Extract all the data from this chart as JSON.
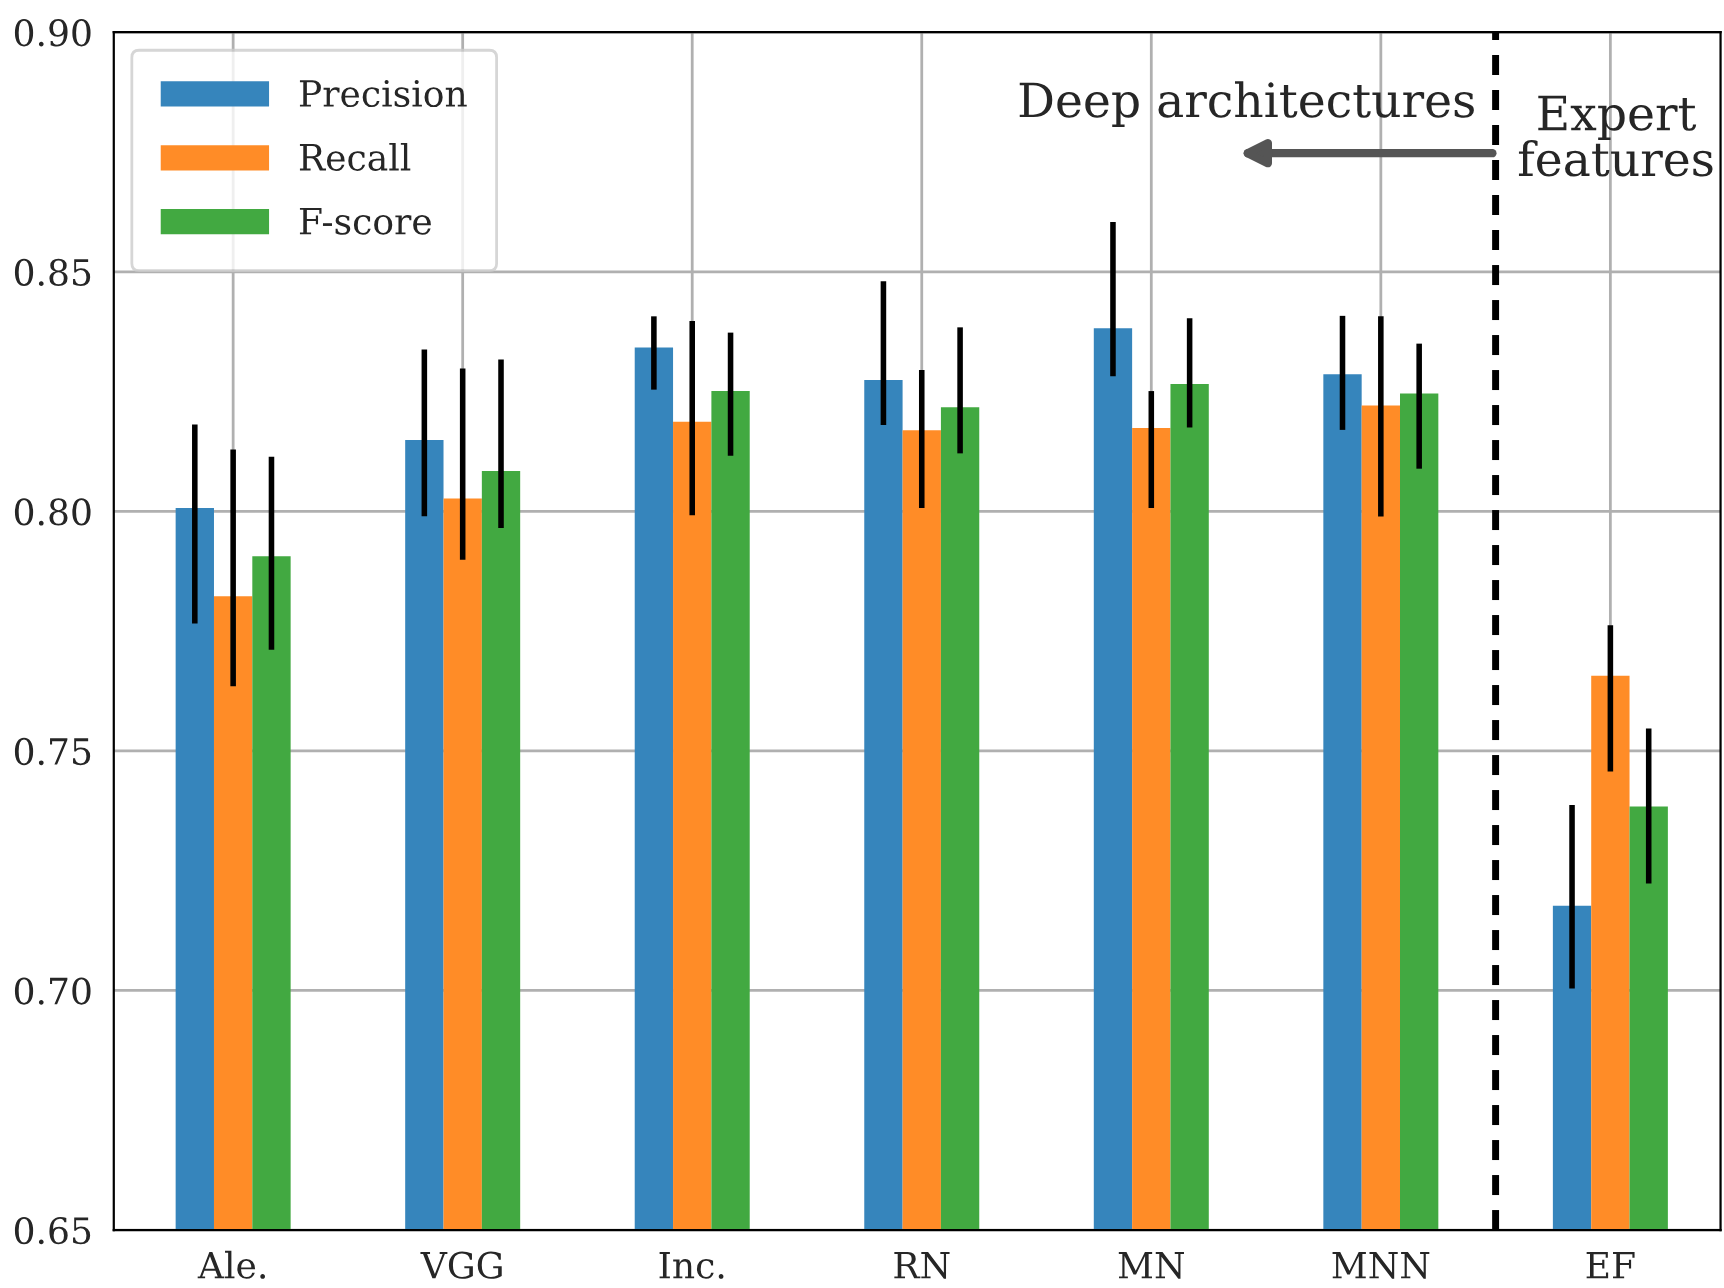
{
  "chart_data": {
    "type": "bar",
    "categories": [
      "Ale.",
      "VGG",
      "Inc.",
      "RN",
      "MN",
      "MNN",
      "EF"
    ],
    "series": [
      {
        "name": "Precision",
        "color": "#3685bc",
        "values": [
          0.8007,
          0.8149,
          0.8342,
          0.8274,
          0.8382,
          0.8286,
          0.7177
        ],
        "errors": [
          [
            0.7766,
            0.8181
          ],
          [
            0.799,
            0.8338
          ],
          [
            0.8254,
            0.8407
          ],
          [
            0.818,
            0.848
          ],
          [
            0.8282,
            0.8604
          ],
          [
            0.817,
            0.8408
          ],
          [
            0.7004,
            0.7387
          ]
        ]
      },
      {
        "name": "Recall",
        "color": "#ff8c27",
        "values": [
          0.7823,
          0.8027,
          0.8187,
          0.8169,
          0.8174,
          0.8221,
          0.7657
        ],
        "errors": [
          [
            0.7635,
            0.8129
          ],
          [
            0.7899,
            0.8298
          ],
          [
            0.7992,
            0.8397
          ],
          [
            0.8007,
            0.8295
          ],
          [
            0.8007,
            0.8251
          ],
          [
            0.7989,
            0.8407
          ],
          [
            0.7457,
            0.7762
          ]
        ]
      },
      {
        "name": "F-score",
        "color": "#42a941",
        "values": [
          0.7906,
          0.8084,
          0.8251,
          0.8217,
          0.8266,
          0.8246,
          0.7384
        ],
        "errors": [
          [
            0.7711,
            0.8114
          ],
          [
            0.7965,
            0.8317
          ],
          [
            0.8116,
            0.8373
          ],
          [
            0.8121,
            0.8384
          ],
          [
            0.8175,
            0.8403
          ],
          [
            0.8089,
            0.835
          ],
          [
            0.7223,
            0.7547
          ]
        ]
      }
    ],
    "ylim": [
      0.65,
      0.9
    ],
    "yticks": [
      0.65,
      {
        "value": 0.7,
        "label": "0.70"
      },
      0.75,
      {
        "value": 0.8,
        "label": "0.80"
      },
      0.85,
      {
        "value": 0.9,
        "label": "0.90"
      }
    ],
    "annotations": [
      "Deep architectures",
      "Expert\nfeatures"
    ],
    "grid": true,
    "legend": "top left"
  }
}
